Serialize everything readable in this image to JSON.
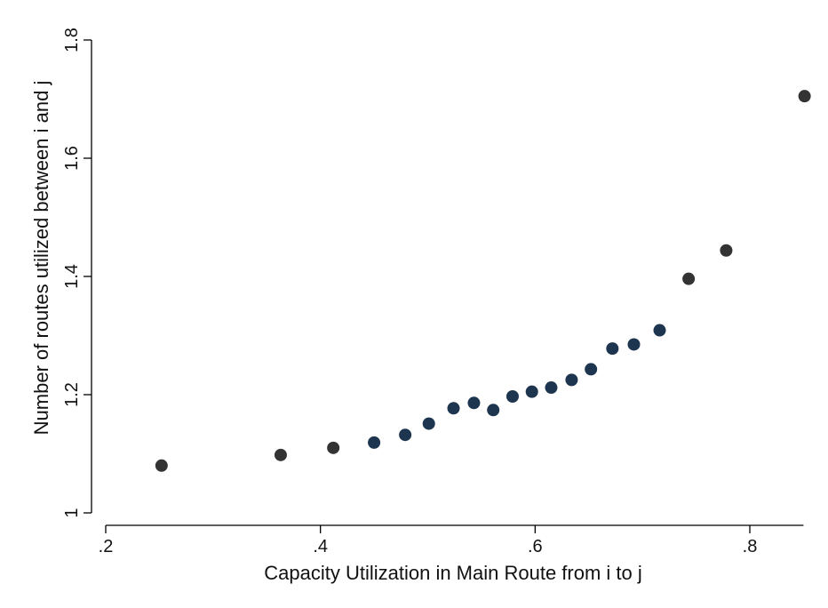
{
  "chart_data": {
    "type": "scatter",
    "title": "",
    "xlabel": "Capacity Utilization in Main Route from i to j",
    "ylabel": "Number of routes utilized between i and j",
    "xlim": [
      0.2,
      0.85
    ],
    "ylim": [
      1.0,
      1.8
    ],
    "x_ticks": [
      0.2,
      0.4,
      0.6,
      0.8
    ],
    "x_tick_labels": [
      ".2",
      ".4",
      ".6",
      ".8"
    ],
    "y_ticks": [
      1.0,
      1.2,
      1.4,
      1.6,
      1.8
    ],
    "y_tick_labels": [
      "1",
      "1.2",
      "1.4",
      "1.6",
      "1.8"
    ],
    "grid": false,
    "series": [
      {
        "x": [
          0.252,
          0.363,
          0.412,
          0.45,
          0.479,
          0.501,
          0.524,
          0.543,
          0.561,
          0.579,
          0.597,
          0.615,
          0.634,
          0.652,
          0.672,
          0.692,
          0.716,
          0.743,
          0.778,
          0.851
        ],
        "y": [
          1.08,
          1.098,
          1.11,
          1.119,
          1.132,
          1.151,
          1.177,
          1.186,
          1.174,
          1.197,
          1.205,
          1.212,
          1.225,
          1.243,
          1.278,
          1.285,
          1.309,
          1.396,
          1.444,
          1.705
        ],
        "point_colors": [
          "#333333",
          "#333333",
          "#333333",
          "#1e3550",
          "#1e3550",
          "#1e3550",
          "#1e3550",
          "#1e3550",
          "#1e3550",
          "#1e3550",
          "#1e3550",
          "#1e3550",
          "#1e3550",
          "#1e3550",
          "#1e3550",
          "#1e3550",
          "#1e3550",
          "#333333",
          "#333333",
          "#333333"
        ]
      }
    ]
  }
}
